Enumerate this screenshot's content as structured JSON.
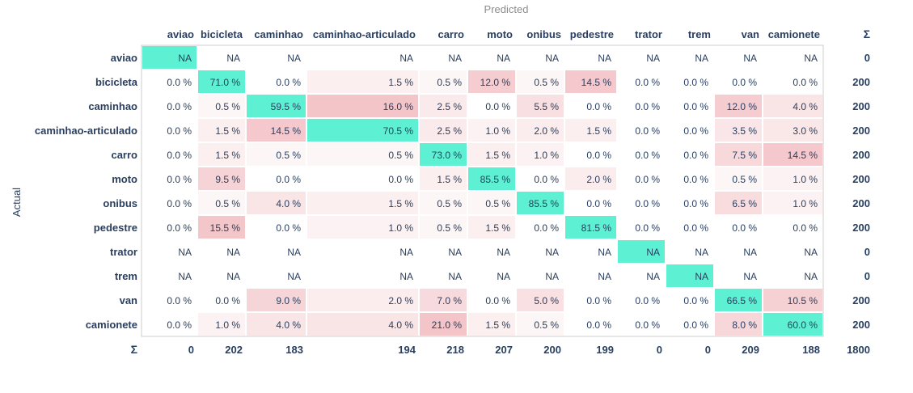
{
  "chart_data": {
    "type": "heatmap",
    "xlabel": "Predicted",
    "ylabel": "Actual",
    "sum_symbol": "Σ",
    "na_label": "NA",
    "value_suffix": " %",
    "categories": [
      "aviao",
      "bicicleta",
      "caminhao",
      "caminhao-articulado",
      "carro",
      "moto",
      "onibus",
      "pedestre",
      "trator",
      "trem",
      "van",
      "camionete"
    ],
    "rows": [
      {
        "label": "aviao",
        "values": [
          null,
          null,
          null,
          null,
          null,
          null,
          null,
          null,
          null,
          null,
          null,
          null
        ],
        "total": 0
      },
      {
        "label": "bicicleta",
        "values": [
          0.0,
          71.0,
          0.0,
          1.5,
          0.5,
          12.0,
          0.5,
          14.5,
          0.0,
          0.0,
          0.0,
          0.0
        ],
        "total": 200
      },
      {
        "label": "caminhao",
        "values": [
          0.0,
          0.5,
          59.5,
          16.0,
          2.5,
          0.0,
          5.5,
          0.0,
          0.0,
          0.0,
          12.0,
          4.0
        ],
        "total": 200
      },
      {
        "label": "caminhao-articulado",
        "values": [
          0.0,
          1.5,
          14.5,
          70.5,
          2.5,
          1.0,
          2.0,
          1.5,
          0.0,
          0.0,
          3.5,
          3.0
        ],
        "total": 200
      },
      {
        "label": "carro",
        "values": [
          0.0,
          1.5,
          0.5,
          0.5,
          73.0,
          1.5,
          1.0,
          0.0,
          0.0,
          0.0,
          7.5,
          14.5
        ],
        "total": 200
      },
      {
        "label": "moto",
        "values": [
          0.0,
          9.5,
          0.0,
          0.0,
          1.5,
          85.5,
          0.0,
          2.0,
          0.0,
          0.0,
          0.5,
          1.0
        ],
        "total": 200
      },
      {
        "label": "onibus",
        "values": [
          0.0,
          0.5,
          4.0,
          1.5,
          0.5,
          0.5,
          85.5,
          0.0,
          0.0,
          0.0,
          6.5,
          1.0
        ],
        "total": 200
      },
      {
        "label": "pedestre",
        "values": [
          0.0,
          15.5,
          0.0,
          1.0,
          0.5,
          1.5,
          0.0,
          81.5,
          0.0,
          0.0,
          0.0,
          0.0
        ],
        "total": 200
      },
      {
        "label": "trator",
        "values": [
          null,
          null,
          null,
          null,
          null,
          null,
          null,
          null,
          null,
          null,
          null,
          null
        ],
        "total": 0
      },
      {
        "label": "trem",
        "values": [
          null,
          null,
          null,
          null,
          null,
          null,
          null,
          null,
          null,
          null,
          null,
          null
        ],
        "total": 0
      },
      {
        "label": "van",
        "values": [
          0.0,
          0.0,
          9.0,
          2.0,
          7.0,
          0.0,
          5.0,
          0.0,
          0.0,
          0.0,
          66.5,
          10.5
        ],
        "total": 200
      },
      {
        "label": "camionete",
        "values": [
          0.0,
          1.0,
          4.0,
          4.0,
          21.0,
          1.5,
          0.5,
          0.0,
          0.0,
          0.0,
          8.0,
          60.0
        ],
        "total": 200
      }
    ],
    "column_totals": [
      0,
      202,
      183,
      194,
      218,
      207,
      200,
      199,
      0,
      0,
      209,
      188
    ],
    "grand_total": 1800,
    "colors": {
      "diagonal": "#5ef0d2",
      "off_diagonal_max": "#f3c5c9",
      "off_diagonal_min": "#ffffff",
      "text": "#2a3f5f",
      "axis_title": "#8c8c8c",
      "border": "#cccccc"
    }
  }
}
